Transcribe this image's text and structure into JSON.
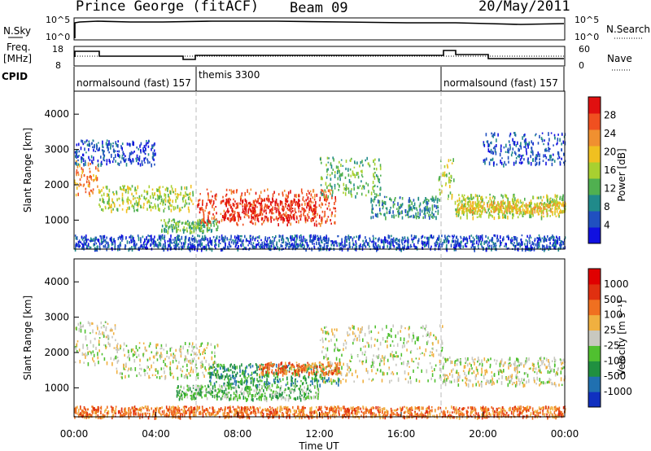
{
  "header": {
    "site": "Prince George (fitACF)",
    "beam": "Beam 09",
    "date": "20/May/2011"
  },
  "panels": {
    "nsky_label": "N.Sky",
    "nsky_ticks": [
      "10^5",
      "10^0"
    ],
    "nsearch_label": "N.Search",
    "nsearch_ticks": [
      "10^5",
      "10^0"
    ],
    "freq_label_1": "Freq.",
    "freq_label_2": "[MHz]",
    "freq_ticks": [
      "18",
      "8"
    ],
    "nave_label": "Nave",
    "nave_ticks": [
      "60",
      "0"
    ],
    "cpid_label": "CPID"
  },
  "cpid_segments": [
    {
      "label": "normalsound (fast) 157",
      "start_h": 0
    },
    {
      "label": "themis 3300",
      "start_h": 6
    },
    {
      "label": "normalsound (fast) 157",
      "start_h": 18
    }
  ],
  "chart_data": [
    {
      "type": "heatmap",
      "quantity": "Power",
      "ylabel": "Slant Range [km]",
      "xlabel": "Time UT",
      "xlim_hours": [
        0,
        24
      ],
      "ylim_km": [
        180,
        4650
      ],
      "yticks": [
        "4000",
        "3000",
        "2000",
        "1000"
      ],
      "colorbar_label": "Power [dB]",
      "colorbar_ticks": [
        "28",
        "24",
        "20",
        "16",
        "12",
        "8",
        "4"
      ],
      "colorbar_colors": [
        "#1010e0",
        "#2050c0",
        "#208a8a",
        "#50b050",
        "#a8d030",
        "#f0c020",
        "#f09030",
        "#f05020",
        "#e01010"
      ],
      "regions": [
        {
          "t": [
            0.0,
            1.2
          ],
          "r": [
            1750,
            2700
          ],
          "level": 6
        },
        {
          "t": [
            1.2,
            5.8
          ],
          "r": [
            1300,
            2000
          ],
          "level": 4
        },
        {
          "t": [
            4.2,
            7.0
          ],
          "r": [
            700,
            1050
          ],
          "level": 3
        },
        {
          "t": [
            6.0,
            12.8
          ],
          "r": [
            900,
            1900
          ],
          "level": 7
        },
        {
          "t": [
            7.2,
            11.8
          ],
          "r": [
            1050,
            1650
          ],
          "level": 8
        },
        {
          "t": [
            12.0,
            15.0
          ],
          "r": [
            1700,
            2800
          ],
          "level": 3
        },
        {
          "t": [
            14.5,
            17.8
          ],
          "r": [
            1100,
            1700
          ],
          "level": 2
        },
        {
          "t": [
            17.8,
            18.6
          ],
          "r": [
            1600,
            2800
          ],
          "level": 4
        },
        {
          "t": [
            18.6,
            24.0
          ],
          "r": [
            1100,
            1750
          ],
          "level": 4
        },
        {
          "t": [
            18.7,
            24.0
          ],
          "r": [
            1250,
            1550
          ],
          "level": 5
        },
        {
          "t": [
            0.0,
            24.0
          ],
          "r": [
            200,
            600
          ],
          "level": 1
        },
        {
          "t": [
            0.0,
            4.0
          ],
          "r": [
            2600,
            3300
          ],
          "level": 1
        },
        {
          "t": [
            20.0,
            24.0
          ],
          "r": [
            2600,
            3500
          ],
          "level": 1
        }
      ]
    },
    {
      "type": "heatmap",
      "quantity": "Velocity",
      "ylabel": "Slant Range [km]",
      "xlabel": "Time UT",
      "xlim_hours": [
        0,
        24
      ],
      "ylim_km": [
        180,
        4650
      ],
      "xticks": [
        "00:00",
        "04:00",
        "08:00",
        "12:00",
        "16:00",
        "20:00",
        "00:00"
      ],
      "yticks": [
        "4000",
        "3000",
        "2000",
        "1000"
      ],
      "colorbar_label": "Velocity [m s⁻¹]",
      "colorbar_ticks": [
        "1000",
        "500",
        "100",
        "25",
        "-25",
        "-100",
        "-500",
        "-1000"
      ],
      "colorbar_colors": [
        "#1030c0",
        "#2070b0",
        "#209040",
        "#50c030",
        "#c8c8c0",
        "#f0b040",
        "#f07020",
        "#e03010",
        "#e00000"
      ],
      "regions": [
        {
          "t": [
            0.0,
            2.0
          ],
          "r": [
            1700,
            2900
          ],
          "level": 4
        },
        {
          "t": [
            2.0,
            7.0
          ],
          "r": [
            1300,
            2300
          ],
          "level": 4
        },
        {
          "t": [
            6.5,
            13.0
          ],
          "r": [
            1100,
            1700
          ],
          "level": 2
        },
        {
          "t": [
            9.0,
            13.0
          ],
          "r": [
            1400,
            1750
          ],
          "level": 6
        },
        {
          "t": [
            5.0,
            12.0
          ],
          "r": [
            700,
            1100
          ],
          "level": 3
        },
        {
          "t": [
            12.0,
            18.0
          ],
          "r": [
            1200,
            2800
          ],
          "level": 4
        },
        {
          "t": [
            18.0,
            24.0
          ],
          "r": [
            1100,
            1900
          ],
          "level": 4
        },
        {
          "t": [
            0.0,
            24.0
          ],
          "r": [
            200,
            500
          ],
          "level": 6
        }
      ]
    }
  ]
}
